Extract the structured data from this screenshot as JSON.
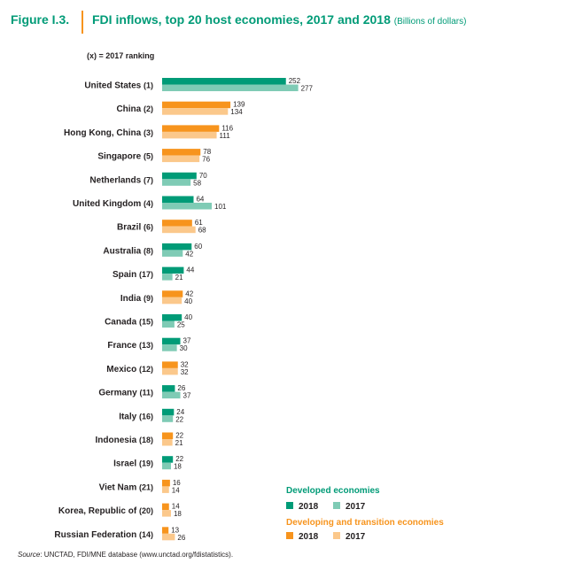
{
  "header": {
    "figure_label": "Figure I.3.",
    "title": "FDI inflows, top 20 host economies, 2017 and 2018",
    "unit": "(Billions of dollars)"
  },
  "ranking_note": "(x) = 2017 ranking",
  "source": {
    "label": "Source",
    "text": ": UNCTAD, FDI/MNE database (www.unctad.org/fdistatistics)."
  },
  "legend": {
    "developed_title": "Developed economies",
    "developing_title": "Developing and transition economies",
    "year_2018": "2018",
    "year_2017": "2017"
  },
  "colors": {
    "developed_2018": "#009b77",
    "developed_2017": "#7fcbb5",
    "developing_2018": "#f7941d",
    "developing_2017": "#fbc88b",
    "title": "#009b77"
  },
  "chart_data": {
    "type": "bar",
    "orientation": "horizontal",
    "series": [
      {
        "name": "2018"
      },
      {
        "name": "2017"
      }
    ],
    "categories": [
      {
        "name": "United States",
        "rank": "(1)",
        "group": "developed",
        "v2018": 252,
        "v2017": 277
      },
      {
        "name": "China",
        "rank": "(2)",
        "group": "developing",
        "v2018": 139,
        "v2017": 134
      },
      {
        "name": "Hong Kong, China",
        "rank": "(3)",
        "group": "developing",
        "v2018": 116,
        "v2017": 111
      },
      {
        "name": "Singapore",
        "rank": "(5)",
        "group": "developing",
        "v2018": 78,
        "v2017": 76
      },
      {
        "name": "Netherlands",
        "rank": "(7)",
        "group": "developed",
        "v2018": 70,
        "v2017": 58
      },
      {
        "name": "United Kingdom",
        "rank": "(4)",
        "group": "developed",
        "v2018": 64,
        "v2017": 101
      },
      {
        "name": "Brazil",
        "rank": "(6)",
        "group": "developing",
        "v2018": 61,
        "v2017": 68
      },
      {
        "name": "Australia",
        "rank": "(8)",
        "group": "developed",
        "v2018": 60,
        "v2017": 42
      },
      {
        "name": "Spain",
        "rank": "(17)",
        "group": "developed",
        "v2018": 44,
        "v2017": 21
      },
      {
        "name": "India",
        "rank": "(9)",
        "group": "developing",
        "v2018": 42,
        "v2017": 40
      },
      {
        "name": "Canada",
        "rank": "(15)",
        "group": "developed",
        "v2018": 40,
        "v2017": 25
      },
      {
        "name": "France",
        "rank": "(13)",
        "group": "developed",
        "v2018": 37,
        "v2017": 30
      },
      {
        "name": "Mexico",
        "rank": "(12)",
        "group": "developing",
        "v2018": 32,
        "v2017": 32
      },
      {
        "name": "Germany",
        "rank": "(11)",
        "group": "developed",
        "v2018": 26,
        "v2017": 37
      },
      {
        "name": "Italy",
        "rank": "(16)",
        "group": "developed",
        "v2018": 24,
        "v2017": 22
      },
      {
        "name": "Indonesia",
        "rank": "(18)",
        "group": "developing",
        "v2018": 22,
        "v2017": 21
      },
      {
        "name": "Israel",
        "rank": "(19)",
        "group": "developed",
        "v2018": 22,
        "v2017": 18
      },
      {
        "name": "Viet Nam",
        "rank": "(21)",
        "group": "developing",
        "v2018": 16,
        "v2017": 14
      },
      {
        "name": "Korea, Republic of",
        "rank": "(20)",
        "group": "developing",
        "v2018": 14,
        "v2017": 18
      },
      {
        "name": "Russian Federation",
        "rank": "(14)",
        "group": "developing",
        "v2018": 13,
        "v2017": 26
      }
    ],
    "xlim": [
      0,
      277
    ],
    "grid": false,
    "legend_position": "bottom-right"
  }
}
